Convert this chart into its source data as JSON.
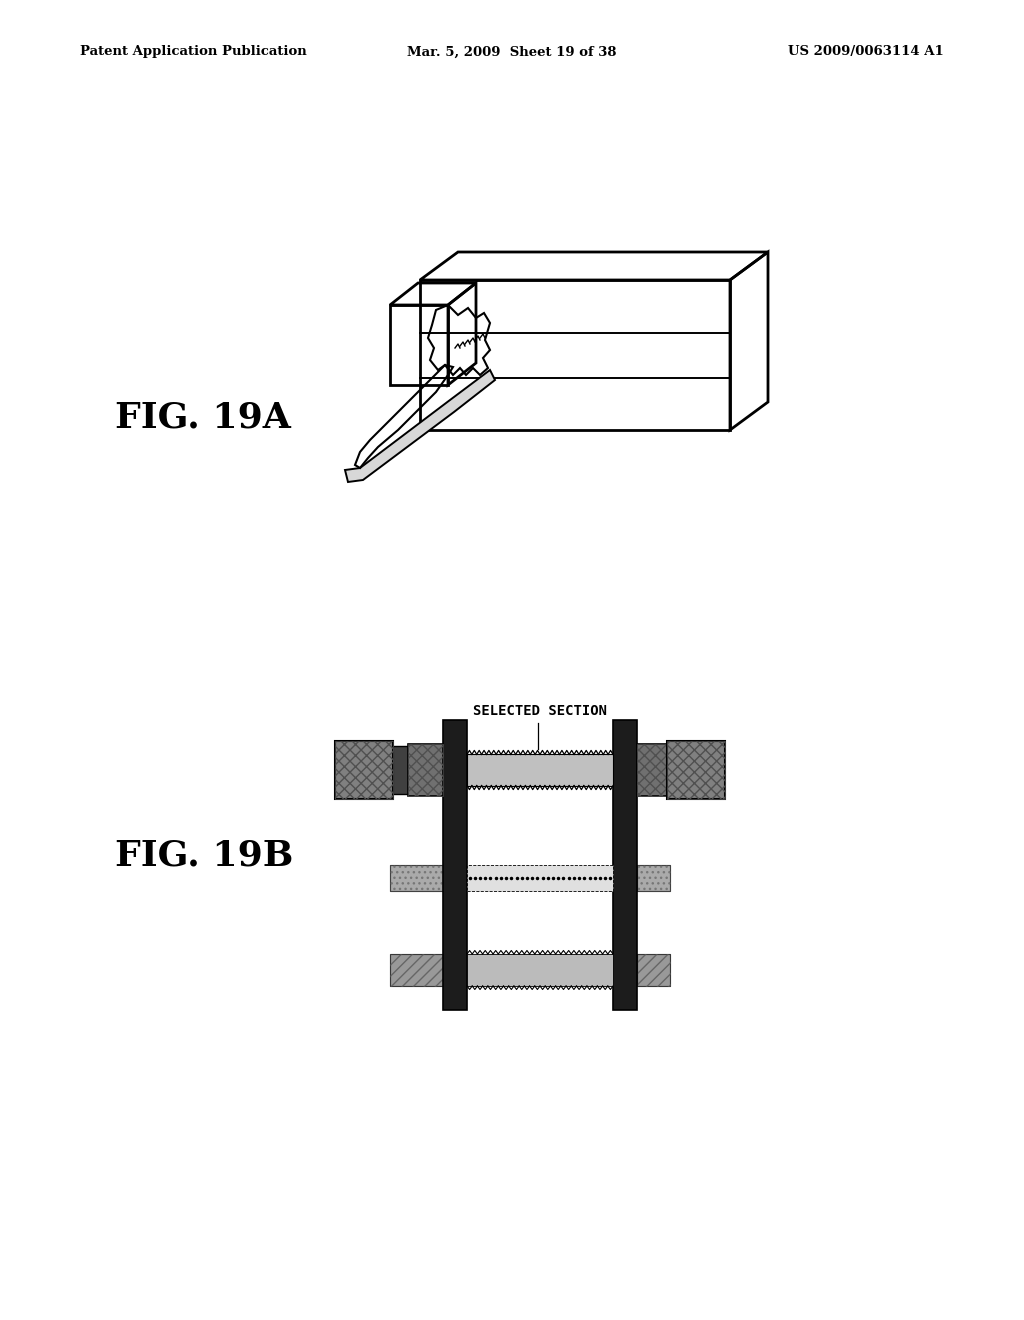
{
  "background_color": "#ffffff",
  "header_left": "Patent Application Publication",
  "header_center": "Mar. 5, 2009  Sheet 19 of 38",
  "header_right": "US 2009/0063114 A1",
  "fig19a_label": "FIG. 19A",
  "fig19b_label": "FIG. 19B",
  "selected_section_label": "SELECTED SECTION"
}
